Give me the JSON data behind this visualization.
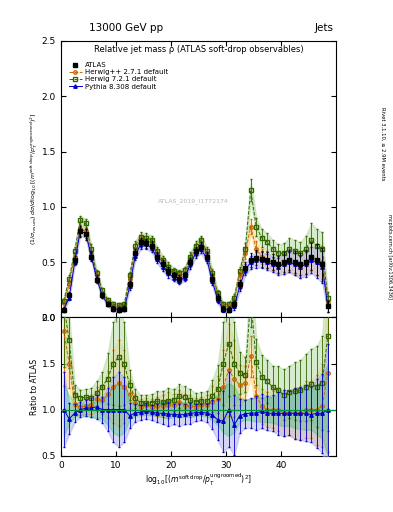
{
  "title_top": "13000 GeV pp",
  "title_right": "Jets",
  "plot_title": "Relative jet mass ρ (ATLAS soft-drop observables)",
  "ylabel_main": "$(1/\\sigma_{\\rm resum})$ $d\\sigma/d\\log_{10}[(m^{\\rm soft\\,drop}/p_T^{\\rm ungroomed})^2]$",
  "ylabel_ratio": "Ratio to ATLAS",
  "xlabel": "$\\log_{10}[(m^{\\rm soft\\,drop}/p_T^{\\rm ungroomed})^2]$",
  "right_label": "Rivet 3.1.10, ≥ 2.9M events",
  "right_label2": "mcplots.cern.ch [arXiv:1306.3436]",
  "ylim_main": [
    0.0,
    2.5
  ],
  "ylim_ratio": [
    0.5,
    2.0
  ],
  "xlim": [
    0,
    50
  ],
  "watermark": "ATLAS_2019_I1772174",
  "x": [
    0.5,
    1.5,
    2.5,
    3.5,
    4.5,
    5.5,
    6.5,
    7.5,
    8.5,
    9.5,
    10.5,
    11.5,
    12.5,
    13.5,
    14.5,
    15.5,
    16.5,
    17.5,
    18.5,
    19.5,
    20.5,
    21.5,
    22.5,
    23.5,
    24.5,
    25.5,
    26.5,
    27.5,
    28.5,
    29.5,
    30.5,
    31.5,
    32.5,
    33.5,
    34.5,
    35.5,
    36.5,
    37.5,
    38.5,
    39.5,
    40.5,
    41.5,
    42.5,
    43.5,
    44.5,
    45.5,
    46.5,
    47.5,
    48.5
  ],
  "atlas_y": [
    0.07,
    0.2,
    0.52,
    0.78,
    0.75,
    0.55,
    0.34,
    0.2,
    0.12,
    0.08,
    0.07,
    0.08,
    0.3,
    0.58,
    0.68,
    0.67,
    0.65,
    0.55,
    0.48,
    0.42,
    0.38,
    0.35,
    0.38,
    0.5,
    0.6,
    0.64,
    0.55,
    0.35,
    0.18,
    0.08,
    0.07,
    0.12,
    0.3,
    0.45,
    0.52,
    0.54,
    0.53,
    0.52,
    0.5,
    0.48,
    0.5,
    0.52,
    0.5,
    0.48,
    0.5,
    0.55,
    0.52,
    0.48,
    0.1
  ],
  "atlas_yerr": [
    0.02,
    0.03,
    0.04,
    0.05,
    0.05,
    0.04,
    0.03,
    0.02,
    0.02,
    0.02,
    0.02,
    0.02,
    0.03,
    0.04,
    0.04,
    0.04,
    0.04,
    0.04,
    0.04,
    0.04,
    0.03,
    0.03,
    0.03,
    0.04,
    0.04,
    0.04,
    0.04,
    0.04,
    0.03,
    0.02,
    0.02,
    0.03,
    0.04,
    0.05,
    0.06,
    0.07,
    0.07,
    0.07,
    0.07,
    0.08,
    0.09,
    0.09,
    0.1,
    0.1,
    0.11,
    0.12,
    0.14,
    0.15,
    0.05
  ],
  "herwig_y": [
    0.13,
    0.3,
    0.55,
    0.8,
    0.78,
    0.58,
    0.38,
    0.22,
    0.14,
    0.1,
    0.09,
    0.1,
    0.35,
    0.62,
    0.7,
    0.7,
    0.67,
    0.57,
    0.5,
    0.44,
    0.4,
    0.38,
    0.4,
    0.52,
    0.62,
    0.67,
    0.58,
    0.38,
    0.2,
    0.1,
    0.1,
    0.16,
    0.38,
    0.58,
    0.82,
    0.62,
    0.55,
    0.52,
    0.5,
    0.48,
    0.48,
    0.5,
    0.48,
    0.46,
    0.5,
    0.55,
    0.52,
    0.5,
    0.14
  ],
  "herwig_yerr": [
    0.02,
    0.03,
    0.04,
    0.04,
    0.04,
    0.04,
    0.03,
    0.02,
    0.02,
    0.02,
    0.02,
    0.02,
    0.03,
    0.04,
    0.04,
    0.04,
    0.04,
    0.04,
    0.04,
    0.04,
    0.03,
    0.03,
    0.03,
    0.04,
    0.04,
    0.04,
    0.04,
    0.04,
    0.03,
    0.02,
    0.02,
    0.03,
    0.04,
    0.05,
    0.07,
    0.07,
    0.07,
    0.07,
    0.07,
    0.08,
    0.09,
    0.09,
    0.1,
    0.1,
    0.11,
    0.12,
    0.14,
    0.15,
    0.05
  ],
  "herwig72_y": [
    0.15,
    0.35,
    0.6,
    0.88,
    0.85,
    0.62,
    0.4,
    0.25,
    0.16,
    0.12,
    0.11,
    0.12,
    0.38,
    0.65,
    0.73,
    0.72,
    0.7,
    0.6,
    0.52,
    0.46,
    0.42,
    0.4,
    0.43,
    0.55,
    0.65,
    0.7,
    0.6,
    0.4,
    0.22,
    0.12,
    0.12,
    0.18,
    0.42,
    0.62,
    1.15,
    0.82,
    0.72,
    0.68,
    0.62,
    0.58,
    0.58,
    0.62,
    0.6,
    0.58,
    0.62,
    0.7,
    0.65,
    0.62,
    0.18
  ],
  "herwig72_yerr": [
    0.02,
    0.03,
    0.04,
    0.04,
    0.04,
    0.04,
    0.03,
    0.02,
    0.02,
    0.02,
    0.02,
    0.02,
    0.03,
    0.04,
    0.04,
    0.04,
    0.04,
    0.04,
    0.04,
    0.04,
    0.03,
    0.03,
    0.03,
    0.04,
    0.04,
    0.04,
    0.04,
    0.04,
    0.03,
    0.02,
    0.02,
    0.03,
    0.04,
    0.05,
    0.1,
    0.08,
    0.08,
    0.08,
    0.08,
    0.08,
    0.09,
    0.1,
    0.1,
    0.1,
    0.12,
    0.15,
    0.15,
    0.15,
    0.05
  ],
  "pythia_y": [
    0.07,
    0.18,
    0.5,
    0.78,
    0.76,
    0.56,
    0.35,
    0.2,
    0.12,
    0.08,
    0.07,
    0.08,
    0.28,
    0.56,
    0.66,
    0.66,
    0.63,
    0.53,
    0.46,
    0.4,
    0.36,
    0.33,
    0.36,
    0.48,
    0.58,
    0.62,
    0.53,
    0.33,
    0.16,
    0.07,
    0.07,
    0.1,
    0.28,
    0.43,
    0.5,
    0.52,
    0.52,
    0.5,
    0.48,
    0.46,
    0.48,
    0.5,
    0.48,
    0.46,
    0.48,
    0.52,
    0.5,
    0.46,
    0.1
  ],
  "pythia_yerr": [
    0.02,
    0.02,
    0.03,
    0.04,
    0.04,
    0.04,
    0.03,
    0.02,
    0.02,
    0.02,
    0.02,
    0.02,
    0.03,
    0.04,
    0.04,
    0.04,
    0.04,
    0.04,
    0.04,
    0.04,
    0.03,
    0.03,
    0.03,
    0.04,
    0.04,
    0.04,
    0.04,
    0.04,
    0.03,
    0.02,
    0.02,
    0.03,
    0.04,
    0.05,
    0.06,
    0.07,
    0.07,
    0.07,
    0.07,
    0.08,
    0.09,
    0.09,
    0.1,
    0.1,
    0.11,
    0.12,
    0.14,
    0.15,
    0.05
  ],
  "atlas_color": "#000000",
  "herwig_color": "#cc6600",
  "herwig72_color": "#336600",
  "pythia_color": "#0000cc",
  "herwig_fill": "#ffdd99",
  "herwig72_fill": "#bbddaa",
  "pythia_fill": "#aaaaee",
  "atlas_band": "#00bb44"
}
